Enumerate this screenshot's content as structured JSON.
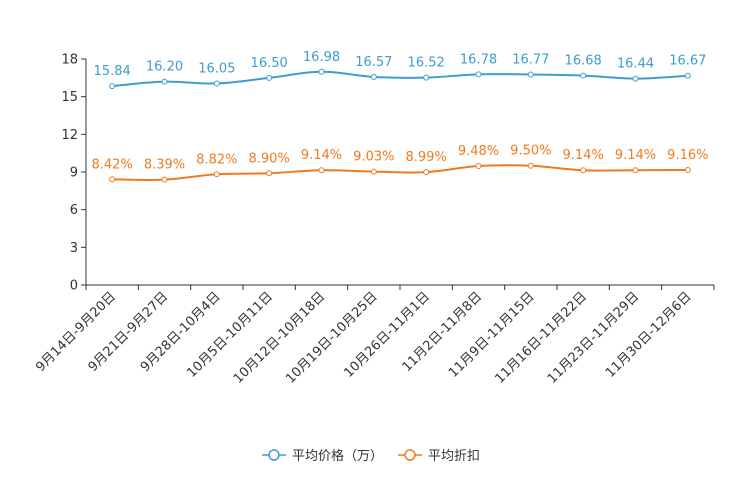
{
  "chart_data": {
    "type": "line",
    "title": "",
    "xlabel": "",
    "ylabel": "",
    "ylim": [
      0,
      18
    ],
    "yticks": [
      0,
      3,
      6,
      9,
      12,
      15,
      18
    ],
    "grid": false,
    "legend_position": "bottom-center",
    "categories": [
      "9月14日-9月20日",
      "9月21日-9月27日",
      "9月28日-10月4日",
      "10月5日-10月11日",
      "10月12日-10月18日",
      "10月19日-10月25日",
      "10月26日-11月1日",
      "11月2日-11月8日",
      "11月9日-11月15日",
      "11月16日-11月22日",
      "11月23日-11月29日",
      "11月30日-12月6日"
    ],
    "series": [
      {
        "name": "平均价格（万）",
        "color": "#3d9dd0",
        "values": [
          15.84,
          16.2,
          16.05,
          16.5,
          16.98,
          16.57,
          16.52,
          16.78,
          16.77,
          16.68,
          16.44,
          16.67
        ],
        "labels": [
          "15.84",
          "16.20",
          "16.05",
          "16.50",
          "16.98",
          "16.57",
          "16.52",
          "16.78",
          "16.77",
          "16.68",
          "16.44",
          "16.67"
        ]
      },
      {
        "name": "平均折扣",
        "color": "#f07a1e",
        "values": [
          8.42,
          8.39,
          8.82,
          8.9,
          9.14,
          9.03,
          8.99,
          9.48,
          9.5,
          9.14,
          9.14,
          9.16
        ],
        "labels": [
          "8.42%",
          "8.39%",
          "8.82%",
          "8.90%",
          "9.14%",
          "9.03%",
          "8.99%",
          "9.48%",
          "9.50%",
          "9.14%",
          "9.14%",
          "9.16%"
        ]
      }
    ]
  }
}
